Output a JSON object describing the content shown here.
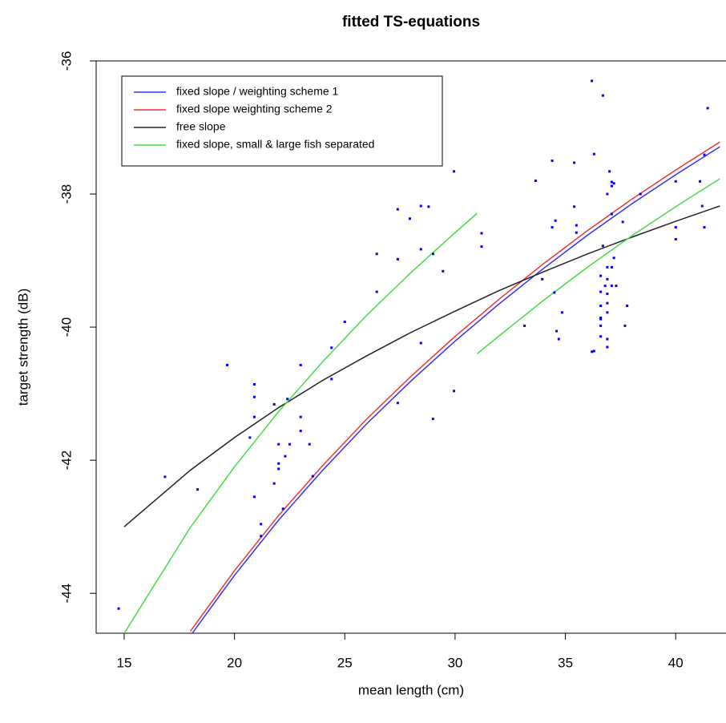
{
  "chart_data": {
    "type": "scatter",
    "title": "fitted TS-equations",
    "x_label": "mean length (cm)",
    "y_label": "target strength (dB)",
    "xlim": [
      13.73,
      42.28
    ],
    "ylim": [
      -44.6,
      -36
    ],
    "xticks": [
      15,
      20,
      25,
      30,
      35,
      40
    ],
    "yticks": [
      -44,
      -42,
      -40,
      -38,
      -36
    ],
    "legend": "top-left",
    "points": {
      "color": "#0000ff",
      "x": [
        14.75,
        16.85,
        18.33,
        19.67,
        20.9,
        20.9,
        20.9,
        20.7,
        20.9,
        21.2,
        21.2,
        21.8,
        21.8,
        22,
        22,
        22,
        22.2,
        22.3,
        22.4,
        22.5,
        23,
        23,
        23,
        23.4,
        23.55,
        24.4,
        24.4,
        25,
        26.45,
        26.45,
        27.4,
        27.4,
        27.4,
        27.95,
        28.4,
        28.45,
        28.45,
        28.45,
        28.8,
        29,
        29,
        29.45,
        29.95,
        29.95,
        31.2,
        31.2,
        33.15,
        33.65,
        33.95,
        34.4,
        34.4,
        34.5,
        34.55,
        34.6,
        34.7,
        34.85,
        36.2,
        35.4,
        35.4,
        35.5,
        36.3,
        36.7,
        35.5,
        36.7,
        36.9,
        36.6,
        36.6,
        36.6,
        36.6,
        36.6,
        36.6,
        36.2,
        36.9,
        36.3,
        37.1,
        37.1,
        37.1,
        37.2,
        36.9,
        36.9,
        36.9,
        36.9,
        36.9,
        36.9,
        36.6,
        37.1,
        37.1,
        37.0,
        37.2,
        37.6,
        36.8,
        37.7,
        37.8,
        37.3,
        38.4,
        40,
        40,
        40,
        41.1,
        41.2,
        41.3,
        41.3,
        41.45
      ],
      "values": [
        -44.23,
        -42.25,
        -42.44,
        -40.57,
        -40.86,
        -41.05,
        -41.35,
        -41.66,
        -42.55,
        -42.96,
        -43.14,
        -41.16,
        -42.35,
        -41.76,
        -42.05,
        -42.13,
        -42.73,
        -41.94,
        -41.08,
        -41.76,
        -40.57,
        -41.35,
        -41.56,
        -41.76,
        -42.24,
        -40.31,
        -40.78,
        -39.92,
        -38.9,
        -39.47,
        -38.23,
        -38.98,
        -41.14,
        -38.37,
        -37.53,
        -38.18,
        -38.83,
        -40.24,
        -38.19,
        -38.9,
        -41.38,
        -39.16,
        -37.66,
        -40.96,
        -38.59,
        -38.79,
        -39.98,
        -37.8,
        -39.28,
        -37.5,
        -38.5,
        -39.48,
        -38.4,
        -40.06,
        -40.18,
        -39.78,
        -36.3,
        -37.53,
        -38.19,
        -38.47,
        -40.36,
        -36.52,
        -38.58,
        -38.78,
        -39.1,
        -39.23,
        -39.47,
        -39.68,
        -39.88,
        -39.98,
        -40.14,
        -40.37,
        -38.0,
        -37.4,
        -37.82,
        -37.88,
        -38.3,
        -38.96,
        -39.28,
        -39.5,
        -39.64,
        -39.78,
        -40.18,
        -40.3,
        -39.86,
        -39.38,
        -39.1,
        -37.66,
        -37.84,
        -38.42,
        -39.38,
        -39.98,
        -39.68,
        -39.38,
        -38.0,
        -37.81,
        -38.5,
        -38.68,
        -37.81,
        -38.18,
        -38.5,
        -37.41,
        -36.71
      ]
    },
    "series": [
      {
        "name": "fixed slope / weighting scheme 1",
        "color": "#3333ee",
        "x": [
          18,
          20,
          22,
          24,
          26,
          28,
          30,
          32,
          34,
          36,
          38,
          40,
          42
        ],
        "values": [
          -44.64,
          -43.73,
          -42.9,
          -42.15,
          -41.45,
          -40.81,
          -40.21,
          -39.65,
          -39.12,
          -38.62,
          -38.15,
          -37.71,
          -37.29
        ]
      },
      {
        "name": "fixed slope weighting scheme 2",
        "color": "#ee3333",
        "x": [
          18,
          20,
          22,
          24,
          26,
          28,
          30,
          32,
          34,
          36,
          38,
          40,
          42
        ],
        "values": [
          -44.57,
          -43.66,
          -42.83,
          -42.08,
          -41.38,
          -40.74,
          -40.14,
          -39.58,
          -39.05,
          -38.55,
          -38.08,
          -37.64,
          -37.22
        ]
      },
      {
        "name": "free slope",
        "color": "#222222",
        "x": [
          15,
          18,
          20,
          22,
          24,
          26,
          28,
          30,
          32,
          34,
          36,
          38,
          40,
          42
        ],
        "values": [
          -43.0,
          -42.15,
          -41.66,
          -41.21,
          -40.8,
          -40.43,
          -40.08,
          -39.76,
          -39.45,
          -39.17,
          -38.9,
          -38.65,
          -38.41,
          -38.18
        ]
      },
      {
        "name": "fixed slope, small & large fish separated",
        "color": "#44dd44",
        "x": [
          15,
          18,
          20,
          22,
          24,
          26,
          28,
          30,
          31
        ],
        "values": [
          -44.6,
          -43.01,
          -42.1,
          -41.27,
          -40.52,
          -39.82,
          -39.18,
          -38.58,
          -38.29
        ]
      },
      {
        "color": "#44dd44",
        "x": [
          31,
          32,
          34,
          36,
          38,
          40,
          42
        ],
        "values": [
          -40.4,
          -40.13,
          -39.6,
          -39.1,
          -38.63,
          -38.19,
          -37.77
        ]
      }
    ]
  }
}
